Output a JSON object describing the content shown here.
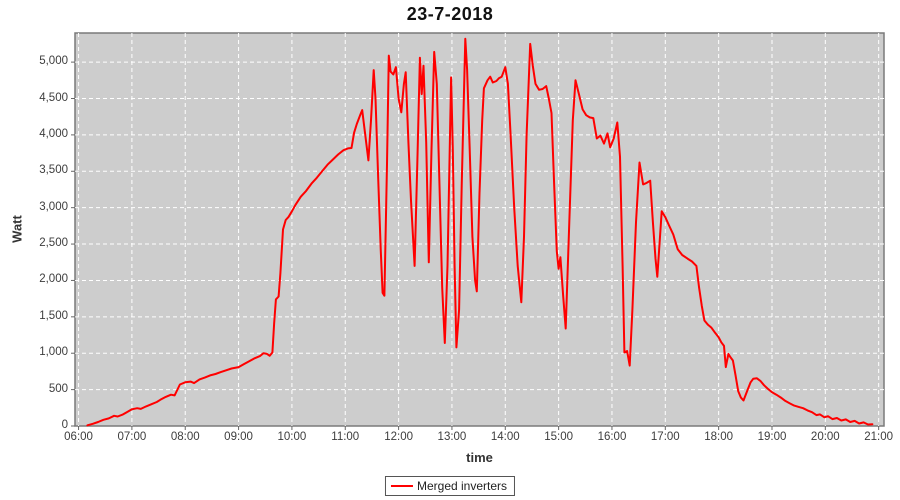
{
  "title": "23-7-2018",
  "colors": {
    "series": "#ff0000",
    "plot_bg": "#cdcdcd",
    "grid": "#ffffff",
    "plot_border": "#7a7a7a",
    "tick_mark": "#666666",
    "outer_bg": "#ffffff"
  },
  "legend": {
    "series_label": "Merged inverters"
  },
  "chart_data": {
    "type": "line",
    "title": "23-7-2018",
    "xlabel": "time",
    "ylabel": "Watt",
    "series_name": "Merged inverters",
    "legend_position": "bottom",
    "grid": "white dashed on gray background",
    "x_min_minutes": 356,
    "x_max_minutes": 1266,
    "ylim": [
      0,
      5400
    ],
    "x_ticks": [
      {
        "m": 360,
        "label": "06:00"
      },
      {
        "m": 420,
        "label": "07:00"
      },
      {
        "m": 480,
        "label": "08:00"
      },
      {
        "m": 540,
        "label": "09:00"
      },
      {
        "m": 600,
        "label": "10:00"
      },
      {
        "m": 660,
        "label": "11:00"
      },
      {
        "m": 720,
        "label": "12:00"
      },
      {
        "m": 780,
        "label": "13:00"
      },
      {
        "m": 840,
        "label": "14:00"
      },
      {
        "m": 900,
        "label": "15:00"
      },
      {
        "m": 960,
        "label": "16:00"
      },
      {
        "m": 1020,
        "label": "17:00"
      },
      {
        "m": 1080,
        "label": "18:00"
      },
      {
        "m": 1140,
        "label": "19:00"
      },
      {
        "m": 1200,
        "label": "20:00"
      },
      {
        "m": 1260,
        "label": "21:00"
      }
    ],
    "y_ticks": [
      {
        "v": 0,
        "label": "0"
      },
      {
        "v": 500,
        "label": "500"
      },
      {
        "v": 1000,
        "label": "1,000"
      },
      {
        "v": 1500,
        "label": "1,500"
      },
      {
        "v": 2000,
        "label": "2,000"
      },
      {
        "v": 2500,
        "label": "2,500"
      },
      {
        "v": 3000,
        "label": "3,000"
      },
      {
        "v": 3500,
        "label": "3,500"
      },
      {
        "v": 4000,
        "label": "4,000"
      },
      {
        "v": 4500,
        "label": "4,500"
      },
      {
        "v": 5000,
        "label": "5,000"
      }
    ],
    "points_format": [
      "minutes_since_midnight",
      "watt"
    ],
    "points": [
      [
        370,
        10
      ],
      [
        376,
        30
      ],
      [
        382,
        55
      ],
      [
        388,
        85
      ],
      [
        394,
        105
      ],
      [
        400,
        140
      ],
      [
        404,
        130
      ],
      [
        410,
        160
      ],
      [
        416,
        200
      ],
      [
        420,
        230
      ],
      [
        426,
        245
      ],
      [
        430,
        235
      ],
      [
        436,
        270
      ],
      [
        442,
        300
      ],
      [
        448,
        330
      ],
      [
        452,
        360
      ],
      [
        458,
        400
      ],
      [
        464,
        430
      ],
      [
        468,
        420
      ],
      [
        474,
        570
      ],
      [
        480,
        600
      ],
      [
        486,
        610
      ],
      [
        490,
        590
      ],
      [
        496,
        640
      ],
      [
        502,
        665
      ],
      [
        508,
        695
      ],
      [
        514,
        715
      ],
      [
        520,
        740
      ],
      [
        526,
        765
      ],
      [
        532,
        790
      ],
      [
        540,
        810
      ],
      [
        546,
        850
      ],
      [
        552,
        890
      ],
      [
        558,
        930
      ],
      [
        564,
        960
      ],
      [
        568,
        1000
      ],
      [
        572,
        990
      ],
      [
        575,
        965
      ],
      [
        578,
        1010
      ],
      [
        580,
        1400
      ],
      [
        582,
        1740
      ],
      [
        585,
        1780
      ],
      [
        587,
        2100
      ],
      [
        590,
        2700
      ],
      [
        593,
        2830
      ],
      [
        596,
        2870
      ],
      [
        600,
        2950
      ],
      [
        604,
        3040
      ],
      [
        610,
        3150
      ],
      [
        616,
        3230
      ],
      [
        622,
        3330
      ],
      [
        628,
        3410
      ],
      [
        634,
        3500
      ],
      [
        640,
        3590
      ],
      [
        646,
        3660
      ],
      [
        652,
        3730
      ],
      [
        658,
        3790
      ],
      [
        663,
        3815
      ],
      [
        667,
        3820
      ],
      [
        670,
        4030
      ],
      [
        673,
        4150
      ],
      [
        677,
        4280
      ],
      [
        679,
        4340
      ],
      [
        682,
        4050
      ],
      [
        686,
        3650
      ],
      [
        689,
        4200
      ],
      [
        692,
        4890
      ],
      [
        694,
        4500
      ],
      [
        697,
        3400
      ],
      [
        700,
        2400
      ],
      [
        702,
        1830
      ],
      [
        704,
        1790
      ],
      [
        707,
        3600
      ],
      [
        709,
        5090
      ],
      [
        711,
        4870
      ],
      [
        714,
        4830
      ],
      [
        717,
        4930
      ],
      [
        720,
        4500
      ],
      [
        723,
        4310
      ],
      [
        726,
        4700
      ],
      [
        728,
        4860
      ],
      [
        731,
        3900
      ],
      [
        734,
        3100
      ],
      [
        738,
        2200
      ],
      [
        741,
        3600
      ],
      [
        744,
        5060
      ],
      [
        746,
        4560
      ],
      [
        748,
        4950
      ],
      [
        751,
        3900
      ],
      [
        754,
        2250
      ],
      [
        757,
        3800
      ],
      [
        760,
        5140
      ],
      [
        763,
        4700
      ],
      [
        766,
        3300
      ],
      [
        769,
        1900
      ],
      [
        772,
        1140
      ],
      [
        775,
        2200
      ],
      [
        779,
        4790
      ],
      [
        781,
        3800
      ],
      [
        783,
        2200
      ],
      [
        785,
        1080
      ],
      [
        788,
        1600
      ],
      [
        791,
        3300
      ],
      [
        795,
        5320
      ],
      [
        797,
        4900
      ],
      [
        800,
        3800
      ],
      [
        803,
        2600
      ],
      [
        806,
        2000
      ],
      [
        808,
        1850
      ],
      [
        811,
        3200
      ],
      [
        814,
        4200
      ],
      [
        816,
        4640
      ],
      [
        820,
        4750
      ],
      [
        823,
        4800
      ],
      [
        826,
        4720
      ],
      [
        830,
        4740
      ],
      [
        833,
        4780
      ],
      [
        836,
        4800
      ],
      [
        840,
        4930
      ],
      [
        843,
        4700
      ],
      [
        846,
        4000
      ],
      [
        850,
        3000
      ],
      [
        854,
        2200
      ],
      [
        858,
        1700
      ],
      [
        861,
        2600
      ],
      [
        864,
        4000
      ],
      [
        868,
        5250
      ],
      [
        871,
        4950
      ],
      [
        874,
        4700
      ],
      [
        878,
        4620
      ],
      [
        882,
        4630
      ],
      [
        886,
        4670
      ],
      [
        889,
        4500
      ],
      [
        892,
        4300
      ],
      [
        895,
        3300
      ],
      [
        898,
        2400
      ],
      [
        900,
        2160
      ],
      [
        902,
        2320
      ],
      [
        905,
        1800
      ],
      [
        908,
        1340
      ],
      [
        912,
        2800
      ],
      [
        916,
        4200
      ],
      [
        919,
        4750
      ],
      [
        923,
        4550
      ],
      [
        927,
        4350
      ],
      [
        931,
        4270
      ],
      [
        935,
        4240
      ],
      [
        939,
        4230
      ],
      [
        943,
        3950
      ],
      [
        947,
        3990
      ],
      [
        951,
        3880
      ],
      [
        955,
        4020
      ],
      [
        958,
        3830
      ],
      [
        962,
        3950
      ],
      [
        966,
        4170
      ],
      [
        969,
        3700
      ],
      [
        972,
        2200
      ],
      [
        974,
        1010
      ],
      [
        977,
        1030
      ],
      [
        980,
        830
      ],
      [
        983,
        1600
      ],
      [
        987,
        2800
      ],
      [
        991,
        3620
      ],
      [
        995,
        3320
      ],
      [
        999,
        3340
      ],
      [
        1003,
        3370
      ],
      [
        1006,
        2800
      ],
      [
        1009,
        2300
      ],
      [
        1011,
        2050
      ],
      [
        1014,
        2600
      ],
      [
        1016,
        2950
      ],
      [
        1020,
        2870
      ],
      [
        1024,
        2760
      ],
      [
        1029,
        2630
      ],
      [
        1034,
        2430
      ],
      [
        1039,
        2350
      ],
      [
        1045,
        2300
      ],
      [
        1050,
        2260
      ],
      [
        1055,
        2200
      ],
      [
        1058,
        1900
      ],
      [
        1061,
        1650
      ],
      [
        1064,
        1450
      ],
      [
        1068,
        1390
      ],
      [
        1072,
        1350
      ],
      [
        1076,
        1280
      ],
      [
        1080,
        1220
      ],
      [
        1083,
        1150
      ],
      [
        1086,
        1100
      ],
      [
        1088,
        810
      ],
      [
        1091,
        990
      ],
      [
        1093,
        950
      ],
      [
        1096,
        900
      ],
      [
        1099,
        700
      ],
      [
        1102,
        480
      ],
      [
        1105,
        390
      ],
      [
        1108,
        350
      ],
      [
        1112,
        480
      ],
      [
        1116,
        600
      ],
      [
        1119,
        650
      ],
      [
        1123,
        655
      ],
      [
        1127,
        620
      ],
      [
        1131,
        560
      ],
      [
        1135,
        515
      ],
      [
        1140,
        465
      ],
      [
        1145,
        430
      ],
      [
        1150,
        390
      ],
      [
        1155,
        345
      ],
      [
        1160,
        310
      ],
      [
        1165,
        280
      ],
      [
        1170,
        262
      ],
      [
        1175,
        245
      ],
      [
        1180,
        215
      ],
      [
        1185,
        190
      ],
      [
        1190,
        150
      ],
      [
        1194,
        160
      ],
      [
        1199,
        120
      ],
      [
        1203,
        135
      ],
      [
        1208,
        95
      ],
      [
        1213,
        110
      ],
      [
        1218,
        75
      ],
      [
        1223,
        90
      ],
      [
        1228,
        55
      ],
      [
        1233,
        70
      ],
      [
        1238,
        35
      ],
      [
        1243,
        50
      ],
      [
        1248,
        20
      ],
      [
        1253,
        25
      ]
    ]
  }
}
